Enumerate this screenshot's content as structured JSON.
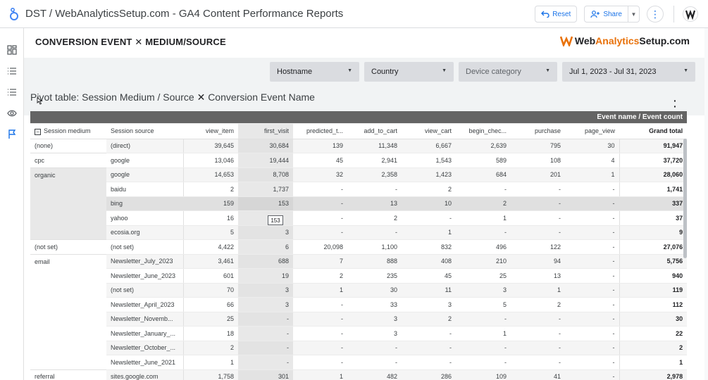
{
  "app": {
    "title": "DST / WebAnalyticsSetup.com - GA4 Content Performance Reports",
    "reset_label": "Reset",
    "share_label": "Share"
  },
  "report": {
    "title": "CONVERSION EVENT ✕ MEDIUM/SOURCE",
    "brand_part1": "Web",
    "brand_part2": "Analytics",
    "brand_part3": "Setup.com"
  },
  "filters": {
    "hostname": "Hostname",
    "country": "Country",
    "device_category": "Device category",
    "date_range": "Jul 1, 2023 - Jul 31, 2023"
  },
  "chart": {
    "title_prefix": "Pivot table: Session Medium / Source",
    "title_x": "✕",
    "title_suffix": "Conversion Event Name",
    "band_label": "Event name / Event count",
    "tooltip_value": "153"
  },
  "table": {
    "headers": {
      "session_medium": "Session medium",
      "session_source": "Session source",
      "view_item": "view_item",
      "first_visit": "first_visit",
      "predicted": "predicted_t...",
      "add_to_cart": "add_to_cart",
      "view_cart": "view_cart",
      "begin_checkout": "begin_chec...",
      "purchase": "purchase",
      "page_view": "page_view",
      "grand_total": "Grand total"
    },
    "rows": [
      {
        "medium": "(none)",
        "source": "(direct)",
        "v": [
          "39,645",
          "30,684",
          "139",
          "11,348",
          "6,667",
          "2,639",
          "795",
          "30"
        ],
        "total": "91,947"
      },
      {
        "medium": "cpc",
        "source": "google",
        "v": [
          "13,046",
          "19,444",
          "45",
          "2,941",
          "1,543",
          "589",
          "108",
          "4"
        ],
        "total": "37,720"
      },
      {
        "medium": "organic",
        "source": "google",
        "v": [
          "14,653",
          "8,708",
          "32",
          "2,358",
          "1,423",
          "684",
          "201",
          "1"
        ],
        "total": "28,060"
      },
      {
        "medium": "",
        "source": "baidu",
        "v": [
          "2",
          "1,737",
          "-",
          "-",
          "2",
          "-",
          "-",
          "-"
        ],
        "total": "1,741"
      },
      {
        "medium": "",
        "source": "bing",
        "v": [
          "159",
          "153",
          "-",
          "13",
          "10",
          "2",
          "-",
          "-"
        ],
        "total": "337"
      },
      {
        "medium": "",
        "source": "yahoo",
        "v": [
          "16",
          "",
          "-",
          "2",
          "-",
          "1",
          "-",
          "-"
        ],
        "total": "37"
      },
      {
        "medium": "",
        "source": "ecosia.org",
        "v": [
          "5",
          "3",
          "-",
          "-",
          "1",
          "-",
          "-",
          "-"
        ],
        "total": "9"
      },
      {
        "medium": "(not set)",
        "source": "(not set)",
        "v": [
          "4,422",
          "6",
          "20,098",
          "1,100",
          "832",
          "496",
          "122",
          "-"
        ],
        "total": "27,076"
      },
      {
        "medium": "email",
        "source": "Newsletter_July_2023",
        "v": [
          "3,461",
          "688",
          "7",
          "888",
          "408",
          "210",
          "94",
          "-"
        ],
        "total": "5,756"
      },
      {
        "medium": "",
        "source": "Newsletter_June_2023",
        "v": [
          "601",
          "19",
          "2",
          "235",
          "45",
          "25",
          "13",
          "-"
        ],
        "total": "940"
      },
      {
        "medium": "",
        "source": "(not set)",
        "v": [
          "70",
          "3",
          "1",
          "30",
          "11",
          "3",
          "1",
          "-"
        ],
        "total": "119"
      },
      {
        "medium": "",
        "source": "Newsletter_April_2023",
        "v": [
          "66",
          "3",
          "-",
          "33",
          "3",
          "5",
          "2",
          "-"
        ],
        "total": "112"
      },
      {
        "medium": "",
        "source": "Newsletter_Novemb...",
        "v": [
          "25",
          "-",
          "-",
          "3",
          "2",
          "-",
          "-",
          "-"
        ],
        "total": "30"
      },
      {
        "medium": "",
        "source": "Newsletter_January_...",
        "v": [
          "18",
          "-",
          "-",
          "3",
          "-",
          "1",
          "-",
          "-"
        ],
        "total": "22"
      },
      {
        "medium": "",
        "source": "Newsletter_October_...",
        "v": [
          "2",
          "-",
          "-",
          "-",
          "-",
          "-",
          "-",
          "-"
        ],
        "total": "2"
      },
      {
        "medium": "",
        "source": "Newsletter_June_2021",
        "v": [
          "1",
          "-",
          "-",
          "-",
          "-",
          "-",
          "-",
          "-"
        ],
        "total": "1"
      },
      {
        "medium": "referral",
        "source": "sites.google.com",
        "v": [
          "1,758",
          "301",
          "1",
          "482",
          "286",
          "109",
          "41",
          "-"
        ],
        "total": "2,978"
      }
    ]
  }
}
